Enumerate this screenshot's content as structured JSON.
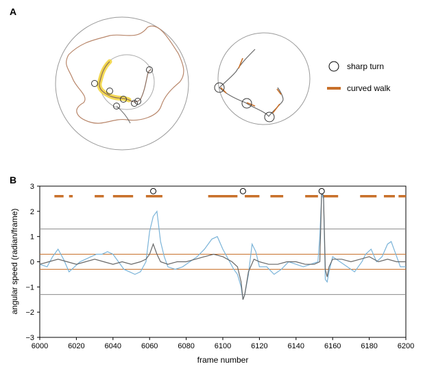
{
  "panels": {
    "a_label": "A",
    "b_label": "B"
  },
  "legend": {
    "sharp_turn": "sharp turn",
    "curved_walk": "curved walk"
  },
  "colors": {
    "orange": "#c8702a",
    "blue": "#7ab3d8",
    "gray": "#8a8a8a",
    "dark_gray": "#666666",
    "yellow": "#f2d43a"
  },
  "chart_data": {
    "type": "line",
    "xlabel": "frame number",
    "ylabel": "angular speed (radian/frame)",
    "xlim": [
      6000,
      6200
    ],
    "ylim": [
      -3,
      3
    ],
    "x_ticks": [
      6000,
      6020,
      6040,
      6060,
      6080,
      6100,
      6120,
      6140,
      6160,
      6180,
      6200
    ],
    "y_ticks": [
      -3,
      -2,
      -1,
      0,
      1,
      2,
      3
    ],
    "thresholds": {
      "sharp": [
        1.3,
        -1.3
      ],
      "curved": [
        0.3,
        -0.3
      ]
    },
    "curved_walk_segments": [
      [
        6008,
        6013
      ],
      [
        6016,
        6018
      ],
      [
        6030,
        6035
      ],
      [
        6040,
        6051
      ],
      [
        6058,
        6067
      ],
      [
        6092,
        6108
      ],
      [
        6112,
        6120
      ],
      [
        6126,
        6133
      ],
      [
        6145,
        6152
      ],
      [
        6155,
        6163
      ],
      [
        6175,
        6184
      ],
      [
        6188,
        6194
      ],
      [
        6196,
        6200
      ]
    ],
    "curved_walk_y": 2.6,
    "sharp_turns": [
      6062,
      6111,
      6154
    ],
    "sharp_turn_y": 2.8,
    "series": [
      {
        "color": "#7ab3d8",
        "x": [
          6000,
          6004,
          6007,
          6010,
          6013,
          6016,
          6019,
          6022,
          6025,
          6028,
          6031,
          6034,
          6037,
          6040,
          6043,
          6046,
          6049,
          6052,
          6055,
          6058,
          6060,
          6062,
          6064,
          6066,
          6068,
          6070,
          6074,
          6078,
          6082,
          6086,
          6090,
          6094,
          6097,
          6100,
          6103,
          6106,
          6108,
          6110,
          6111,
          6112,
          6114,
          6116,
          6118,
          6120,
          6124,
          6128,
          6132,
          6136,
          6140,
          6144,
          6148,
          6152,
          6153,
          6154,
          6155,
          6156,
          6157,
          6158,
          6160,
          6164,
          6168,
          6172,
          6176,
          6178,
          6181,
          6184,
          6187,
          6190,
          6192,
          6194,
          6197,
          6200
        ],
        "y": [
          -0.1,
          -0.2,
          0.2,
          0.5,
          0.1,
          -0.4,
          -0.2,
          0.0,
          0.1,
          0.2,
          0.3,
          0.3,
          0.4,
          0.3,
          0.0,
          -0.3,
          -0.4,
          -0.5,
          -0.4,
          0.0,
          1.2,
          1.8,
          2.0,
          0.8,
          0.2,
          -0.2,
          -0.3,
          -0.2,
          0.0,
          0.2,
          0.5,
          0.9,
          1.0,
          0.5,
          0.1,
          -0.3,
          -0.5,
          -1.0,
          -1.5,
          -1.3,
          -0.5,
          0.7,
          0.4,
          -0.2,
          -0.2,
          -0.5,
          -0.3,
          0.0,
          -0.1,
          -0.2,
          -0.1,
          0.0,
          1.0,
          2.7,
          2.5,
          -0.7,
          -0.8,
          -0.4,
          0.2,
          0.0,
          -0.2,
          -0.4,
          0.0,
          0.3,
          0.5,
          0.0,
          0.2,
          0.7,
          0.8,
          0.4,
          -0.2,
          -0.2
        ]
      },
      {
        "color": "#666666",
        "x": [
          6000,
          6005,
          6010,
          6015,
          6020,
          6025,
          6030,
          6035,
          6040,
          6045,
          6050,
          6055,
          6058,
          6060,
          6062,
          6064,
          6066,
          6070,
          6075,
          6080,
          6085,
          6090,
          6095,
          6100,
          6105,
          6108,
          6110,
          6111,
          6112,
          6114,
          6117,
          6120,
          6125,
          6130,
          6135,
          6140,
          6145,
          6150,
          6153,
          6154,
          6155,
          6156,
          6157,
          6158,
          6160,
          6165,
          6170,
          6175,
          6180,
          6185,
          6190,
          6195,
          6200
        ],
        "y": [
          -0.1,
          0.0,
          0.1,
          0.0,
          -0.1,
          0.0,
          0.1,
          0.0,
          -0.1,
          0.0,
          -0.1,
          0.0,
          0.1,
          0.3,
          0.7,
          0.3,
          0.0,
          -0.1,
          0.0,
          0.0,
          0.1,
          0.2,
          0.3,
          0.2,
          0.0,
          -0.2,
          -0.8,
          -1.5,
          -1.3,
          -0.4,
          0.1,
          0.0,
          -0.1,
          -0.1,
          0.0,
          0.0,
          -0.1,
          -0.1,
          0.0,
          2.8,
          2.6,
          -0.3,
          -0.6,
          -0.2,
          0.1,
          0.1,
          0.0,
          0.1,
          0.2,
          0.0,
          0.1,
          0.0,
          0.0
        ]
      }
    ]
  }
}
